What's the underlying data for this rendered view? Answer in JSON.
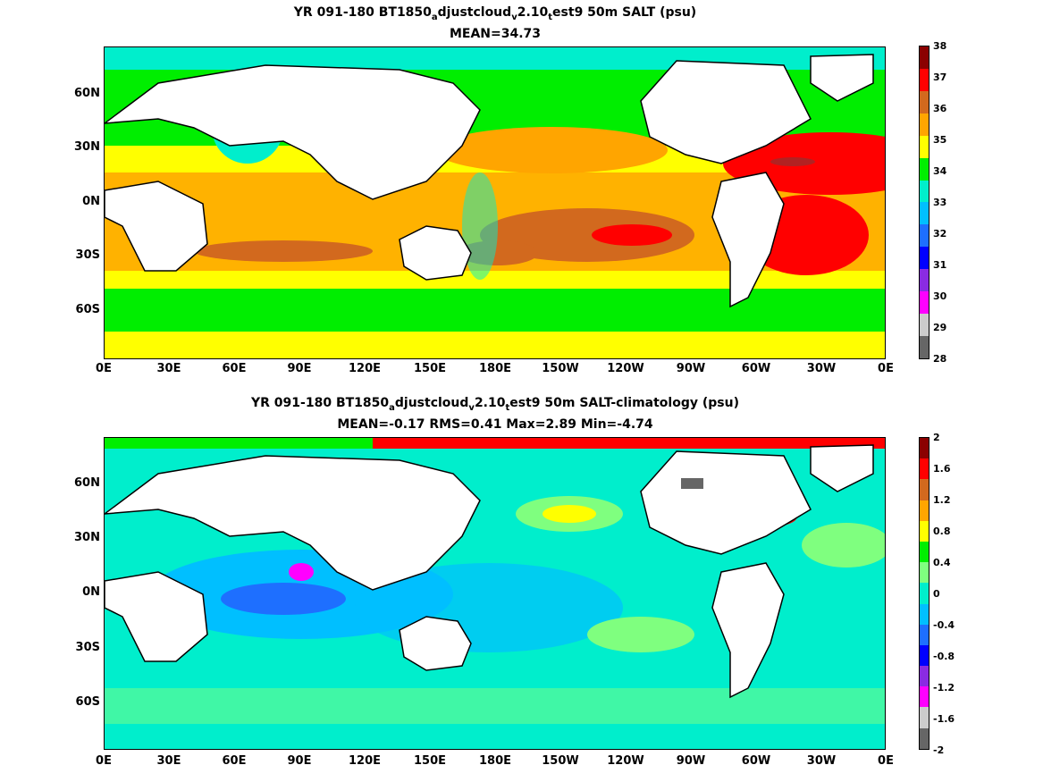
{
  "panel1": {
    "title_main": "YR 091-180 BT1850",
    "title_s1": "a",
    "title_m1": "djustcloud",
    "title_s2": "v",
    "title_m2": "2.10",
    "title_s3": "t",
    "title_m3": "est9 50m SALT (psu)",
    "subtitle": "MEAN=34.73",
    "lat_labels": [
      "60N",
      "30N",
      "0N",
      "30S",
      "60S"
    ],
    "lon_labels": [
      "0E",
      "30E",
      "60E",
      "90E",
      "120E",
      "150E",
      "180E",
      "150W",
      "120W",
      "90W",
      "60W",
      "30W",
      "0E"
    ],
    "colorbar_labels": [
      "38",
      "37",
      "36",
      "35",
      "34",
      "33",
      "32",
      "31",
      "30",
      "29",
      "28"
    ],
    "colorbar_colors": [
      "#8b0000",
      "#ff0000",
      "#d2691e",
      "#ffa500",
      "#ffff00",
      "#00ee00",
      "#00eecc",
      "#00bfff",
      "#1e6fff",
      "#0000ff",
      "#8a2be2",
      "#ff00ff",
      "#cccccc",
      "#666666"
    ]
  },
  "panel2": {
    "title_main": "YR 091-180 BT1850",
    "title_s1": "a",
    "title_m1": "djustcloud",
    "title_s2": "v",
    "title_m2": "2.10",
    "title_s3": "t",
    "title_m3": "est9 50m SALT-climatology (psu)",
    "subtitle": "MEAN=-0.17   RMS=0.41   Max=2.89   Min=-4.74",
    "lat_labels": [
      "60N",
      "30N",
      "0N",
      "30S",
      "60S"
    ],
    "lon_labels": [
      "0E",
      "30E",
      "60E",
      "90E",
      "120E",
      "150E",
      "180E",
      "150W",
      "120W",
      "90W",
      "60W",
      "30W",
      "0E"
    ],
    "colorbar_labels": [
      "2",
      "1.6",
      "1.2",
      "0.8",
      "0.4",
      "0",
      "-0.4",
      "-0.8",
      "-1.2",
      "-1.6",
      "-2"
    ],
    "colorbar_colors": [
      "#8b0000",
      "#ff0000",
      "#d2691e",
      "#ffa500",
      "#ffff00",
      "#00ee00",
      "#7fff7f",
      "#00eecc",
      "#00bfff",
      "#1e6fff",
      "#0000ff",
      "#8a2be2",
      "#ff00ff",
      "#cccccc",
      "#666666"
    ]
  }
}
